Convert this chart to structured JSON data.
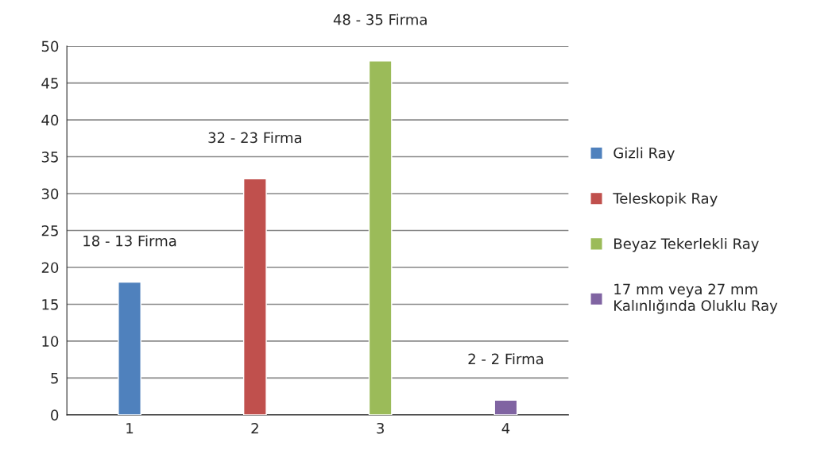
{
  "chart_data": {
    "type": "bar",
    "categories": [
      "1",
      "2",
      "3",
      "4"
    ],
    "series": [
      {
        "name": "Gizli Ray",
        "color": "#4f81bd",
        "values": [
          18,
          null,
          null,
          null
        ],
        "value_labels": [
          "18 - 13 Firma",
          null,
          null,
          null
        ]
      },
      {
        "name": "Teleskopik Ray",
        "color": "#c0504d",
        "values": [
          null,
          32,
          null,
          null
        ],
        "value_labels": [
          null,
          "32 - 23 Firma",
          null,
          null
        ]
      },
      {
        "name": "Beyaz Tekerlekli Ray",
        "color": "#9bbb59",
        "values": [
          null,
          null,
          48,
          null
        ],
        "value_labels": [
          null,
          null,
          "48 - 35 Firma",
          null
        ]
      },
      {
        "name": "17 mm veya 27 mm\nKalınlığında Oluklu Ray",
        "color": "#8064a2",
        "values": [
          null,
          null,
          null,
          2
        ],
        "value_labels": [
          null,
          null,
          null,
          "2 - 2 Firma"
        ]
      }
    ],
    "ylim": [
      0,
      50
    ],
    "yticks": [
      0,
      5,
      10,
      15,
      20,
      25,
      30,
      35,
      40,
      45,
      50
    ],
    "grid": "y",
    "legend": "right"
  }
}
